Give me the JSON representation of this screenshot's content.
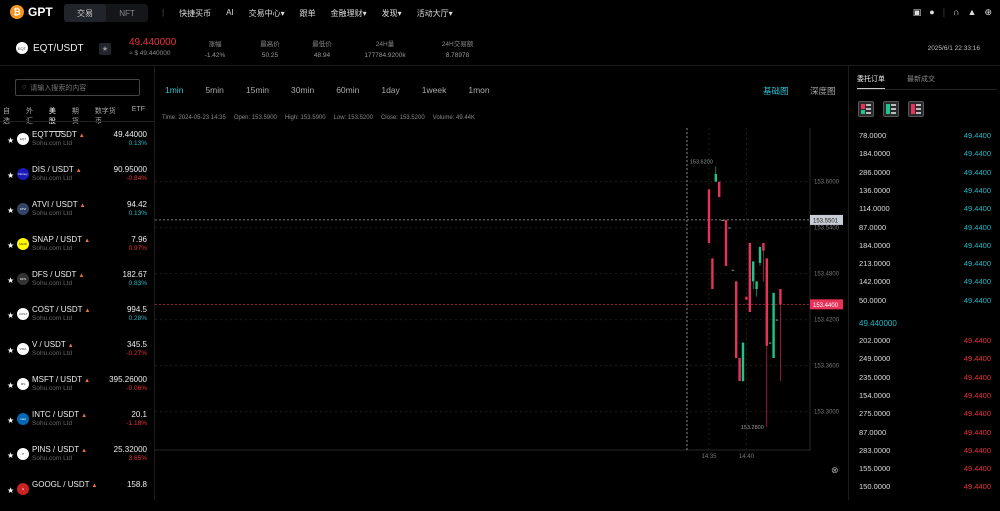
{
  "nav": {
    "brand": "GPT",
    "mode_tabs": [
      {
        "label": "交易",
        "active": true
      },
      {
        "label": "NFT",
        "active": false
      }
    ],
    "items": [
      "快捷买币",
      "AI",
      "交易中心▾",
      "跟单",
      "金融理财▾",
      "发现▾",
      "活动大厅▾"
    ],
    "right_icons": [
      "wallet-icon",
      "user-icon",
      "headset-icon",
      "bell-icon",
      "globe-icon"
    ]
  },
  "ticker": {
    "symbol": "EQT/USDT",
    "logo": "EQT",
    "price": "49.440000",
    "price_usd": "≈ $ 49.440000",
    "metrics": [
      {
        "label": "涨幅",
        "value": "-1.42%"
      },
      {
        "label": "最高价",
        "value": "50.25"
      },
      {
        "label": "最低价",
        "value": "48.94"
      },
      {
        "label": "24H量",
        "value": "177784.9200k"
      },
      {
        "label": "24H交易额",
        "value": "8.78978"
      }
    ],
    "datetime": "2025/6/1 22:33:16"
  },
  "sidebar": {
    "search_placeholder": "请输入搜索的内容",
    "categories": [
      "自选",
      "外汇",
      "美股",
      "期货",
      "数字货币",
      "ETF"
    ],
    "active_category": "美股",
    "items": [
      {
        "name": "EQT / USDT",
        "company": "Sohu.com Ltd",
        "price": "49.44000",
        "change": "0.13%",
        "dir": "up",
        "logo": "EQT",
        "color": "#ffffff"
      },
      {
        "name": "DIS / USDT",
        "company": "Sohu.com Ltd",
        "price": "90.95000",
        "change": "-0.84%",
        "dir": "dn",
        "logo": "Disney",
        "color": "#1a1ab8"
      },
      {
        "name": "ATVI / USDT",
        "company": "Sohu.com Ltd",
        "price": "94.42",
        "change": "0.13%",
        "dir": "up",
        "logo": "ATVI",
        "color": "#334466"
      },
      {
        "name": "SNAP / USDT",
        "company": "Sohu.com Ltd",
        "price": "7.96",
        "change": "0.97%",
        "dir": "dn",
        "logo": "SNAP",
        "color": "#fffc00"
      },
      {
        "name": "DFS / USDT",
        "company": "Sohu.com Ltd",
        "price": "182.67",
        "change": "0.83%",
        "dir": "up",
        "logo": "DFS",
        "color": "#333333"
      },
      {
        "name": "COST / USDT",
        "company": "Sohu.com Ltd",
        "price": "994.5",
        "change": "0.28%",
        "dir": "up",
        "logo": "COST",
        "color": "#ffffff"
      },
      {
        "name": "V / USDT",
        "company": "Sohu.com Ltd",
        "price": "345.5",
        "change": "-0.27%",
        "dir": "dn",
        "logo": "VISA",
        "color": "#ffffff"
      },
      {
        "name": "MSFT / USDT",
        "company": "Sohu.com Ltd",
        "price": "395.26000",
        "change": "-0.06%",
        "dir": "dn",
        "logo": "MS",
        "color": "#ffffff"
      },
      {
        "name": "INTC / USDT",
        "company": "Sohu.com Ltd",
        "price": "20.1",
        "change": "-1.18%",
        "dir": "dn",
        "logo": "intel",
        "color": "#0068b5"
      },
      {
        "name": "PINS / USDT",
        "company": "Sohu.com Ltd",
        "price": "25.32000",
        "change": "3.65%",
        "dir": "dn",
        "logo": "P",
        "color": "#ffffff"
      },
      {
        "name": "GOOGL / USDT",
        "company": "",
        "price": "158.8",
        "change": "",
        "dir": "dn",
        "logo": "G",
        "color": "#cc2222"
      }
    ]
  },
  "chart_toolbar": {
    "intervals": [
      "1min",
      "5min",
      "15min",
      "30min",
      "60min",
      "1day",
      "1week",
      "1mon"
    ],
    "active_interval": "1min",
    "types": [
      "基础图",
      "深度图"
    ],
    "active_type": "基础图"
  },
  "chart_info": {
    "time": "Time: 2024-05-23 14:35",
    "open": "Open: 153.5900",
    "high": "High: 153.5900",
    "low": "Low: 153.5200",
    "close": "Close: 153.5200",
    "volume": "Volume: 49.44K"
  },
  "chart_data": {
    "type": "candlestick",
    "ylim": [
      153.25,
      153.67
    ],
    "y_ticks": [
      "153.6000",
      "153.5400",
      "153.4800",
      "153.4200",
      "153.3600",
      "153.3000"
    ],
    "x_ticks": [
      {
        "label": "14:35",
        "index": 0
      },
      {
        "label": "14:40",
        "index": 11
      }
    ],
    "candles": [
      [
        153.59,
        153.59,
        153.52,
        153.52
      ],
      [
        153.5,
        153.5,
        153.46,
        153.46
      ],
      [
        153.6,
        153.62,
        153.6,
        153.61
      ],
      [
        153.6,
        153.6,
        153.58,
        153.58
      ],
      [
        153.55,
        153.55,
        153.55,
        153.55
      ],
      [
        153.55,
        153.55,
        153.49,
        153.49
      ],
      [
        153.54,
        153.54,
        153.54,
        153.54
      ],
      [
        153.485,
        153.485,
        153.485,
        153.485
      ],
      [
        153.47,
        153.47,
        153.37,
        153.37
      ],
      [
        153.37,
        153.37,
        153.34,
        153.34
      ],
      [
        153.34,
        153.39,
        153.339,
        153.39
      ],
      [
        153.45,
        153.45,
        153.446,
        153.446
      ],
      [
        153.52,
        153.52,
        153.43,
        153.43
      ],
      [
        153.47,
        153.496,
        153.46,
        153.496
      ],
      [
        153.46,
        153.47,
        153.45,
        153.47
      ],
      [
        153.494,
        153.515,
        153.49,
        153.515
      ],
      [
        153.52,
        153.52,
        153.47,
        153.51
      ],
      [
        153.5,
        153.5,
        153.28,
        153.386
      ],
      [
        153.39,
        153.39,
        153.39,
        153.39
      ],
      [
        153.37,
        153.455,
        153.37,
        153.455
      ],
      [
        153.42,
        153.42,
        153.42,
        153.42
      ],
      [
        153.46,
        153.46,
        153.34,
        153.44
      ]
    ],
    "max_label": "153.6200",
    "min_label": "153.2800",
    "crosshair_price": "153.5501",
    "last_price": "153.4400",
    "up_color": "#1fc48a",
    "down_color": "#e8325a"
  },
  "orderbook": {
    "tabs": [
      "委托订单",
      "最新成交"
    ],
    "active_tab": "委托订单",
    "bids": [
      [
        "78.0000",
        "49.4400"
      ],
      [
        "184.0000",
        "49.4400"
      ],
      [
        "286.0000",
        "49.4400"
      ],
      [
        "136.0000",
        "49.4400"
      ],
      [
        "114.0000",
        "49.4400"
      ],
      [
        "87.0000",
        "49.4400"
      ],
      [
        "184.0000",
        "49.4400"
      ],
      [
        "213.0000",
        "49.4400"
      ],
      [
        "142.0000",
        "49.4400"
      ],
      [
        "50.0000",
        "49.4400"
      ]
    ],
    "mid": "49.440000",
    "asks": [
      [
        "202.0000",
        "49.4400"
      ],
      [
        "249.0000",
        "49.4400"
      ],
      [
        "235.0000",
        "49.4400"
      ],
      [
        "154.0000",
        "49.4400"
      ],
      [
        "275.0000",
        "49.4400"
      ],
      [
        "87.0000",
        "49.4400"
      ],
      [
        "283.0000",
        "49.4400"
      ],
      [
        "155.0000",
        "49.4400"
      ],
      [
        "150.0000",
        "49.4400"
      ]
    ]
  }
}
